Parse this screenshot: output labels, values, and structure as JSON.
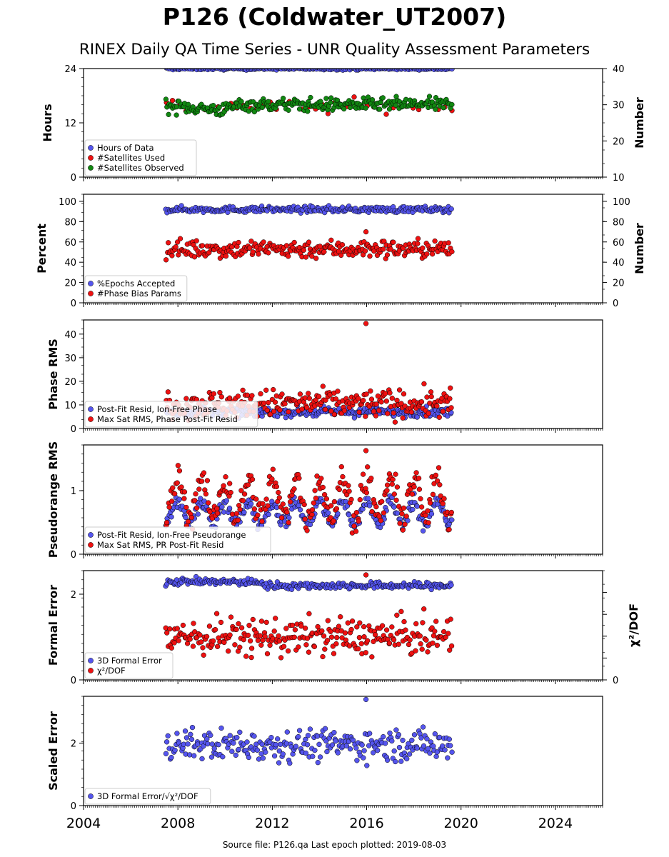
{
  "page": {
    "title": "P126 (Coldwater_UT2007)",
    "subtitle": "RINEX Daily QA Time Series - UNR Quality Assessment Parameters",
    "footer": "Source file: P126.qa Last epoch plotted: 2019-08-03"
  },
  "colors": {
    "blue": "#5555ee",
    "red": "#ee1111",
    "green": "#118811",
    "dark_navy": "#1a1a55"
  },
  "chart_data": [
    {
      "id": "p1",
      "type": "scatter",
      "ylabel": "Hours",
      "y2label": "Number",
      "xlim": [
        2004,
        2026
      ],
      "ylim": [
        0,
        24
      ],
      "yticks": [
        "0",
        "12",
        "24"
      ],
      "y2lim": [
        10,
        40
      ],
      "y2ticks": [
        "10",
        "20",
        "30",
        "40"
      ],
      "legend_position": "lower-left",
      "legend": [
        "Hours of Data",
        "#Satellites Used",
        "#Satellites Observed"
      ],
      "series": [
        {
          "name": "Hours of Data",
          "axis": "left",
          "color": "blue",
          "x_range": [
            2007.5,
            2019.6
          ],
          "value": 24.0,
          "spread": 0.15
        },
        {
          "name": "#Satellites Used",
          "axis": "right",
          "color": "red",
          "x_range": [
            2007.5,
            2019.6
          ],
          "value": 29.5,
          "spread": 1.0,
          "sparse": true
        },
        {
          "name": "#Satellites Observed",
          "axis": "right",
          "color": "green",
          "x_range": [
            2007.5,
            2019.6
          ],
          "trend": [
            [
              2007.5,
              29.6
            ],
            [
              2008.7,
              29.2
            ],
            [
              2009.3,
              28.8
            ],
            [
              2010.0,
              28.6
            ],
            [
              2010.6,
              30.0
            ],
            [
              2012.0,
              30.0
            ],
            [
              2014.0,
              30.0
            ],
            [
              2016.0,
              30.0
            ],
            [
              2018.0,
              30.1
            ],
            [
              2019.6,
              30.0
            ]
          ],
          "spread": 0.9
        }
      ]
    },
    {
      "id": "p2",
      "type": "scatter",
      "ylabel": "Percent",
      "y2label": "Number",
      "xlim": [
        2004,
        2026
      ],
      "ylim": [
        0,
        107
      ],
      "yticks": [
        "0",
        "20",
        "40",
        "60",
        "80",
        "100"
      ],
      "y2lim": [
        0,
        107
      ],
      "y2ticks": [
        "0",
        "20",
        "40",
        "60",
        "80",
        "100"
      ],
      "legend_position": "lower-left",
      "legend": [
        "%Epochs Accepted",
        "#Phase Bias Params"
      ],
      "series": [
        {
          "name": "%Epochs Accepted",
          "axis": "left",
          "color": "blue",
          "x_range": [
            2007.5,
            2019.6
          ],
          "value": 92.0,
          "spread": 1.5
        },
        {
          "name": "#Phase Bias Params",
          "axis": "right",
          "color": "red",
          "x_range": [
            2007.5,
            2019.6
          ],
          "value": 53.0,
          "spread": 4.5,
          "max": 70,
          "min": 41
        }
      ]
    },
    {
      "id": "p3",
      "type": "scatter",
      "ylabel": "Phase RMS",
      "xlim": [
        2004,
        2026
      ],
      "ylim": [
        0,
        46
      ],
      "yticks": [
        "0",
        "10",
        "20",
        "30",
        "40"
      ],
      "legend_position": "lower-left",
      "legend": [
        "Post-Fit Resid, Ion-Free Phase",
        "Max Sat RMS, Phase Post-Fit Resid"
      ],
      "series": [
        {
          "name": "Post-Fit Resid, Ion-Free Phase",
          "axis": "left",
          "color": "blue",
          "x_range": [
            2007.5,
            2019.6
          ],
          "value": 7.0,
          "spread": 1.0
        },
        {
          "name": "Max Sat RMS, Phase Post-Fit Resid",
          "axis": "left",
          "color": "red",
          "x_range": [
            2007.5,
            2019.6
          ],
          "value": 10.5,
          "spread": 3.0,
          "max": 44.5
        }
      ]
    },
    {
      "id": "p4",
      "type": "scatter",
      "ylabel": "Pseudorange RMS",
      "xlim": [
        2004,
        2026
      ],
      "ylim": [
        0,
        1.72
      ],
      "yticks": [
        "0",
        "1"
      ],
      "legend_position": "lower-left",
      "legend": [
        "Post-Fit Resid, Ion-Free Pseudorange",
        "Max Sat RMS, PR Post-Fit Resid"
      ],
      "series": [
        {
          "name": "Post-Fit Resid, Ion-Free Pseudorange",
          "axis": "left",
          "color": "blue",
          "x_range": [
            2007.5,
            2019.6
          ],
          "value": 0.65,
          "seasonal_amplitude": 0.17,
          "spread": 0.06
        },
        {
          "name": "Max Sat RMS, PR Post-Fit Resid",
          "axis": "left",
          "color": "red",
          "x_range": [
            2007.5,
            2019.6
          ],
          "value": 0.88,
          "seasonal_amplitude": 0.3,
          "spread": 0.12,
          "max": 1.63
        }
      ]
    },
    {
      "id": "p5",
      "type": "scatter",
      "ylabel": "Formal Error",
      "y2label": "χ²/DOF",
      "xlim": [
        2004,
        2026
      ],
      "ylim": [
        0,
        2.55
      ],
      "yticks": [
        "0",
        "2"
      ],
      "y2lim": [
        0,
        1
      ],
      "y2ticks": [
        "0"
      ],
      "legend_position": "lower-left",
      "legend": [
        "3D Formal Error",
        "χ²/DOF"
      ],
      "series": [
        {
          "name": "3D Formal Error",
          "axis": "left",
          "color": "blue",
          "trend": [
            [
              2007.5,
              2.3
            ],
            [
              2011.5,
              2.28
            ],
            [
              2011.7,
              2.2
            ],
            [
              2019.6,
              2.2
            ]
          ],
          "spread": 0.04
        },
        {
          "name": "χ²/DOF",
          "axis": "left",
          "color": "red",
          "x_range": [
            2007.5,
            2019.6
          ],
          "value": 1.0,
          "spread": 0.22,
          "max": 2.45,
          "min": 0.4
        }
      ]
    },
    {
      "id": "p6",
      "type": "scatter",
      "ylabel": "Scaled Error",
      "xlim": [
        2004,
        2026
      ],
      "ylim": [
        0,
        3.5
      ],
      "yticks": [
        "0",
        "2"
      ],
      "xticks": [
        "2004",
        "2008",
        "2012",
        "2016",
        "2020",
        "2024"
      ],
      "legend_position": "lower-left",
      "legend": [
        "3D Formal Error/√χ²/DOF"
      ],
      "series": [
        {
          "name": "3D Formal Error/√χ²/DOF",
          "axis": "left",
          "color": "blue",
          "x_range": [
            2007.5,
            2019.6
          ],
          "value": 1.95,
          "spread": 0.25,
          "max": 3.4,
          "min": 1.2
        }
      ]
    }
  ]
}
